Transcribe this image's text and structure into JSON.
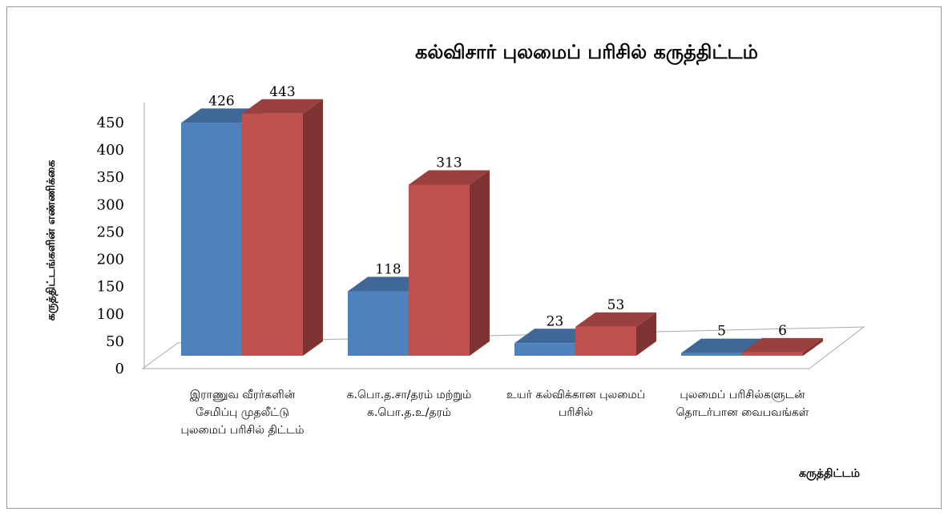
{
  "chart_data": {
    "type": "bar3d",
    "title": "கல்விசார் புலமைப் பரிசில் கருத்திட்டம்",
    "y_label": "கருத்திட்டங்களின் எண்ணிக்கை",
    "x_label": "கருத்திட்டம்",
    "categories": [
      "இராணுவ வீரர்களின் சேமிப்பு முதலீட்டு புலமைப் பரிசில் திட்டம்",
      "க.பொ.த.சா/தரம் மற்றும் க.பொ.த.உ/தரம்",
      "உயர் கல்விக்கான புலமைப் பரிசில்",
      "புலமைப் பரிசில்களுடன் தொடர்பான வைபவங்கள்"
    ],
    "series": [
      {
        "color": "#4f81bd",
        "values": [
          426,
          118,
          23,
          5
        ]
      },
      {
        "color": "#c0504d",
        "values": [
          443,
          313,
          53,
          6
        ]
      }
    ],
    "ylim": [
      0,
      450
    ],
    "yticks": [
      0,
      50,
      100,
      150,
      200,
      250,
      300,
      350,
      400,
      450
    ]
  }
}
